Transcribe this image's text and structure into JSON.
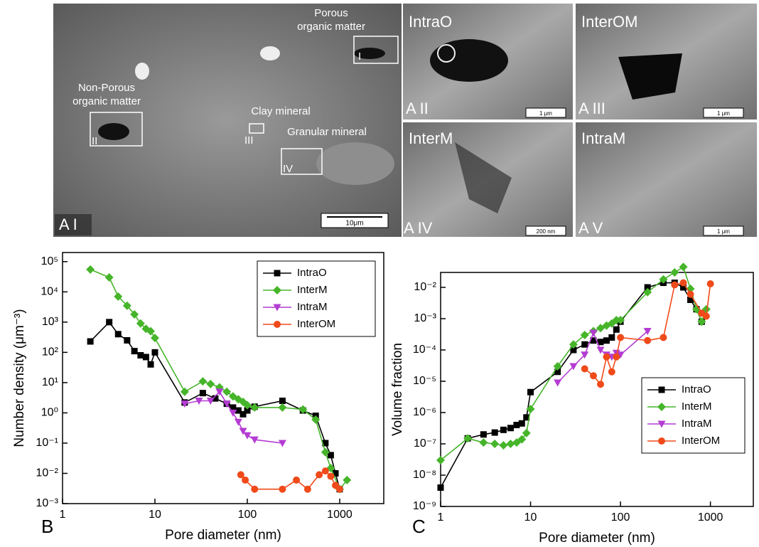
{
  "images": {
    "panels": [
      {
        "label": "A I",
        "texts": [
          "Porous",
          "organic matter",
          "Non-Porous",
          "organic matter",
          "Clay mineral",
          "Granular mineral",
          "I",
          "II",
          "III",
          "IV"
        ],
        "scale": "10μm"
      },
      {
        "label": "A II",
        "title": "IntraO",
        "scale": "1 μm"
      },
      {
        "label": "A III",
        "title": "InterOM",
        "scale": "1 μm"
      },
      {
        "label": "A IV",
        "title": "InterM",
        "scale": "200 nm"
      },
      {
        "label": "A V",
        "title": "IntraM",
        "scale": "1 μm"
      }
    ]
  },
  "chart_data": [
    {
      "type": "line",
      "panel_label": "B",
      "x_label": "Pore diameter (nm)",
      "y_label": "Number density (μm⁻³)",
      "xscale": "log",
      "yscale": "log",
      "xlim": [
        1,
        3000
      ],
      "ylim": [
        0.001,
        200000
      ],
      "xticks": [
        1,
        10,
        100,
        1000
      ],
      "yticks": [
        {
          "value": 0.001,
          "label": "10⁻³"
        },
        {
          "value": 0.01,
          "label": "10⁻²"
        },
        {
          "value": 0.1,
          "label": "10⁻¹"
        },
        {
          "value": 1,
          "label": "10⁰"
        },
        {
          "value": 10,
          "label": "10¹"
        },
        {
          "value": 100,
          "label": "10²"
        },
        {
          "value": 1000,
          "label": "10³"
        },
        {
          "value": 10000,
          "label": "10⁴"
        },
        {
          "value": 100000,
          "label": "10⁵"
        }
      ],
      "legend": "top-right",
      "series": [
        {
          "name": "IntraO",
          "color": "#000000",
          "marker": "square",
          "x": [
            2,
            3.2,
            4,
            5,
            6,
            7,
            8,
            9,
            10,
            21,
            33,
            45,
            60,
            70,
            80,
            90,
            100,
            120,
            240,
            400,
            550,
            700,
            800,
            900,
            1000
          ],
          "values": [
            230,
            1000,
            400,
            250,
            110,
            80,
            70,
            40,
            100,
            2.2,
            4.5,
            3,
            2,
            1.5,
            1.2,
            0.9,
            1.2,
            1.6,
            2.5,
            1.2,
            0.8,
            0.1,
            0.04,
            0.01,
            0.003
          ]
        },
        {
          "name": "InterM",
          "color": "#46b52a",
          "marker": "diamond",
          "x": [
            2,
            3.2,
            4,
            5,
            6,
            7,
            8,
            9,
            10,
            21,
            33,
            40,
            50,
            60,
            70,
            80,
            90,
            100,
            120,
            240,
            400,
            550,
            700,
            800,
            1000,
            1200
          ],
          "values": [
            55000,
            30000,
            7000,
            3500,
            1800,
            900,
            600,
            500,
            300,
            5,
            11,
            9,
            7,
            5,
            3.5,
            2.8,
            2.3,
            1.8,
            1.5,
            1.5,
            1.3,
            0.6,
            0.05,
            0.015,
            0.003,
            0.006
          ]
        },
        {
          "name": "IntraM",
          "color": "#b43cd2",
          "marker": "triangle",
          "x": [
            21,
            30,
            40,
            50,
            60,
            70,
            80,
            90,
            100,
            120,
            240
          ],
          "values": [
            2,
            2.5,
            2.5,
            5,
            2,
            1,
            0.5,
            0.25,
            0.18,
            0.13,
            0.1
          ]
        },
        {
          "name": "InterOM",
          "color": "#f04a1a",
          "marker": "circle",
          "x": [
            85,
            95,
            120,
            240,
            340,
            450,
            600,
            700,
            800,
            900,
            1000
          ],
          "values": [
            0.009,
            0.006,
            0.003,
            0.003,
            0.006,
            0.003,
            0.009,
            0.012,
            0.008,
            0.004,
            0.003
          ]
        }
      ]
    },
    {
      "type": "line",
      "panel_label": "C",
      "x_label": "Pore diameter (nm)",
      "y_label": "Volume fraction",
      "xscale": "log",
      "yscale": "log",
      "xlim": [
        1,
        3000
      ],
      "ylim": [
        1e-09,
        0.03
      ],
      "xticks": [
        1,
        10,
        100,
        1000
      ],
      "yticks": [
        {
          "value": 1e-09,
          "label": "10⁻⁹"
        },
        {
          "value": 1e-08,
          "label": "10⁻⁸"
        },
        {
          "value": 1e-07,
          "label": "10⁻⁷"
        },
        {
          "value": 1e-06,
          "label": "10⁻⁶"
        },
        {
          "value": 1e-05,
          "label": "10⁻⁵"
        },
        {
          "value": 0.0001,
          "label": "10⁻⁴"
        },
        {
          "value": 0.001,
          "label": "10⁻³"
        },
        {
          "value": 0.01,
          "label": "10⁻²"
        }
      ],
      "legend": "bottom-right",
      "series": [
        {
          "name": "IntraO",
          "color": "#000000",
          "marker": "square",
          "x": [
            1,
            2,
            3,
            4,
            5,
            6,
            7,
            8,
            9,
            10,
            20,
            30,
            40,
            50,
            60,
            70,
            80,
            90,
            100,
            200,
            300,
            400,
            500,
            600,
            700,
            800
          ],
          "values": [
            4e-09,
            1.5e-07,
            2e-07,
            2.3e-07,
            2.8e-07,
            3.2e-07,
            4e-07,
            4.5e-07,
            7e-07,
            4.5e-06,
            2e-05,
            0.0001,
            0.00015,
            0.0002,
            0.00018,
            0.0002,
            0.00025,
            0.00045,
            0.0008,
            0.01,
            0.014,
            0.014,
            0.01,
            0.004,
            0.002,
            0.0008
          ]
        },
        {
          "name": "InterM",
          "color": "#46b52a",
          "marker": "diamond",
          "x": [
            1,
            2,
            3,
            4,
            5,
            6,
            7,
            8,
            9,
            10,
            20,
            30,
            40,
            50,
            60,
            70,
            80,
            90,
            100,
            200,
            300,
            400,
            500,
            600,
            700,
            800,
            900
          ],
          "values": [
            3e-08,
            1.5e-07,
            1.1e-07,
            1e-07,
            9e-08,
            1e-07,
            1.1e-07,
            1.4e-07,
            2.2e-07,
            1.3e-06,
            3e-05,
            0.00015,
            0.0003,
            0.0004,
            0.0005,
            0.0006,
            0.0007,
            0.0009,
            0.0009,
            0.007,
            0.018,
            0.03,
            0.045,
            0.009,
            0.002,
            0.0008,
            0.002
          ]
        },
        {
          "name": "IntraM",
          "color": "#b43cd2",
          "marker": "triangle",
          "x": [
            20,
            30,
            40,
            50,
            60,
            70,
            80,
            90,
            100,
            200
          ],
          "values": [
            9e-06,
            3e-05,
            7e-05,
            0.00035,
            0.0001,
            7e-05,
            6e-05,
            8e-05,
            7e-05,
            0.0004
          ]
        },
        {
          "name": "InterOM",
          "color": "#f04a1a",
          "marker": "circle",
          "x": [
            40,
            50,
            60,
            70,
            80,
            90,
            100,
            200,
            300,
            400,
            500,
            600,
            800,
            900,
            1000
          ],
          "values": [
            2.5e-05,
            1.5e-05,
            8e-06,
            6e-05,
            2e-05,
            6e-05,
            0.00025,
            0.0002,
            0.00025,
            0.012,
            0.014,
            0.006,
            0.0015,
            0.0012,
            0.013
          ]
        }
      ]
    }
  ]
}
